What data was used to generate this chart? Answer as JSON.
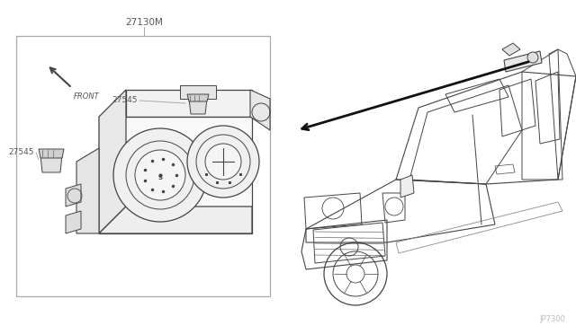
{
  "bg_color": "#ffffff",
  "line_color": "#aaaaaa",
  "dark_line": "#444444",
  "medium_line": "#888888",
  "text_color": "#555555",
  "page_id": "JP7300",
  "label_27130M": "27130M",
  "label_27545a": "27545",
  "label_27545b": "27545",
  "label_front": "FRONT",
  "figsize": [
    6.4,
    3.72
  ],
  "dpi": 100
}
